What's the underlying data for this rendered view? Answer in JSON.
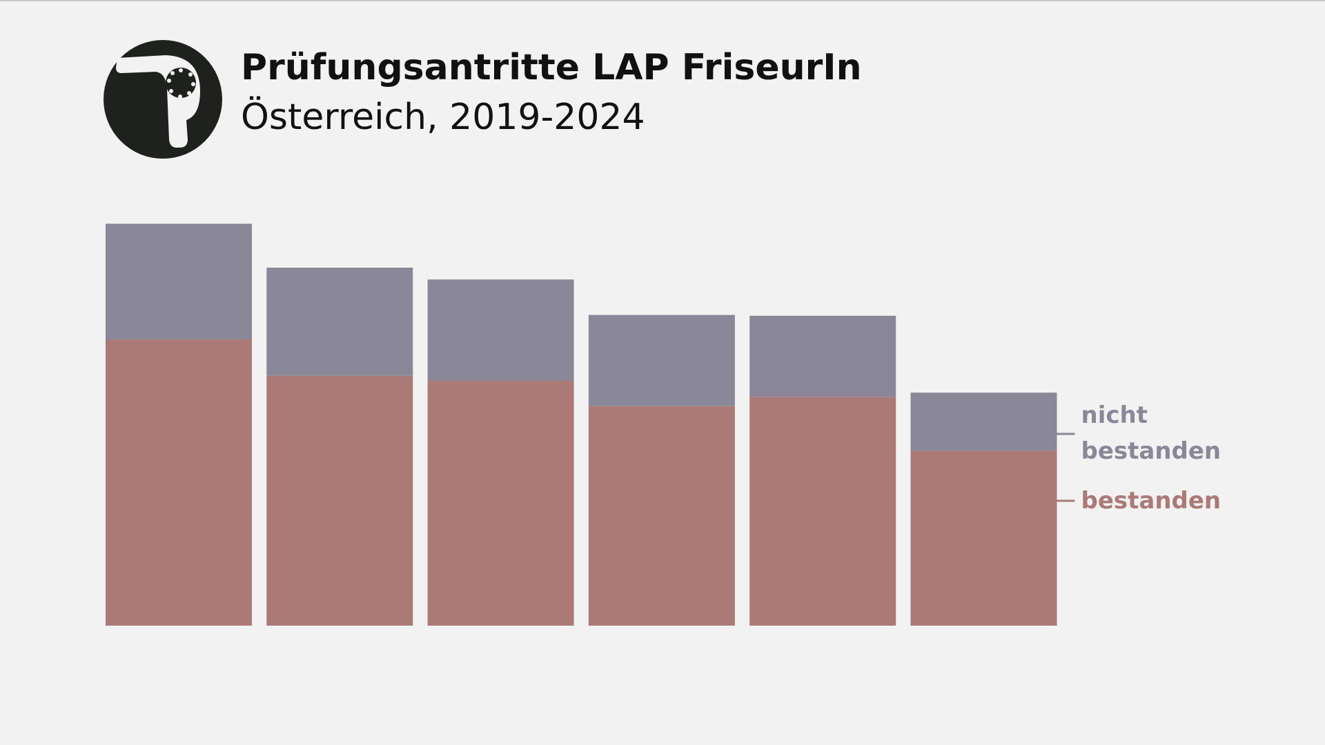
{
  "chart_data": {
    "type": "stacked-bar",
    "title": "Prüfungsantritte LAP FriseurIn",
    "subtitle": "Österreich, 2019-2024",
    "categories": [
      null,
      null,
      null,
      null,
      null,
      null
    ],
    "series": [
      {
        "name": "bestanden",
        "color": "#ab7a77",
        "values": [
          339,
          296,
          290,
          260,
          271,
          207
        ]
      },
      {
        "name": "nicht bestanden",
        "color": "#8a8898",
        "values": [
          137,
          128,
          120,
          108,
          96,
          69
        ]
      }
    ],
    "ylim": [
      0,
      500
    ]
  }
}
